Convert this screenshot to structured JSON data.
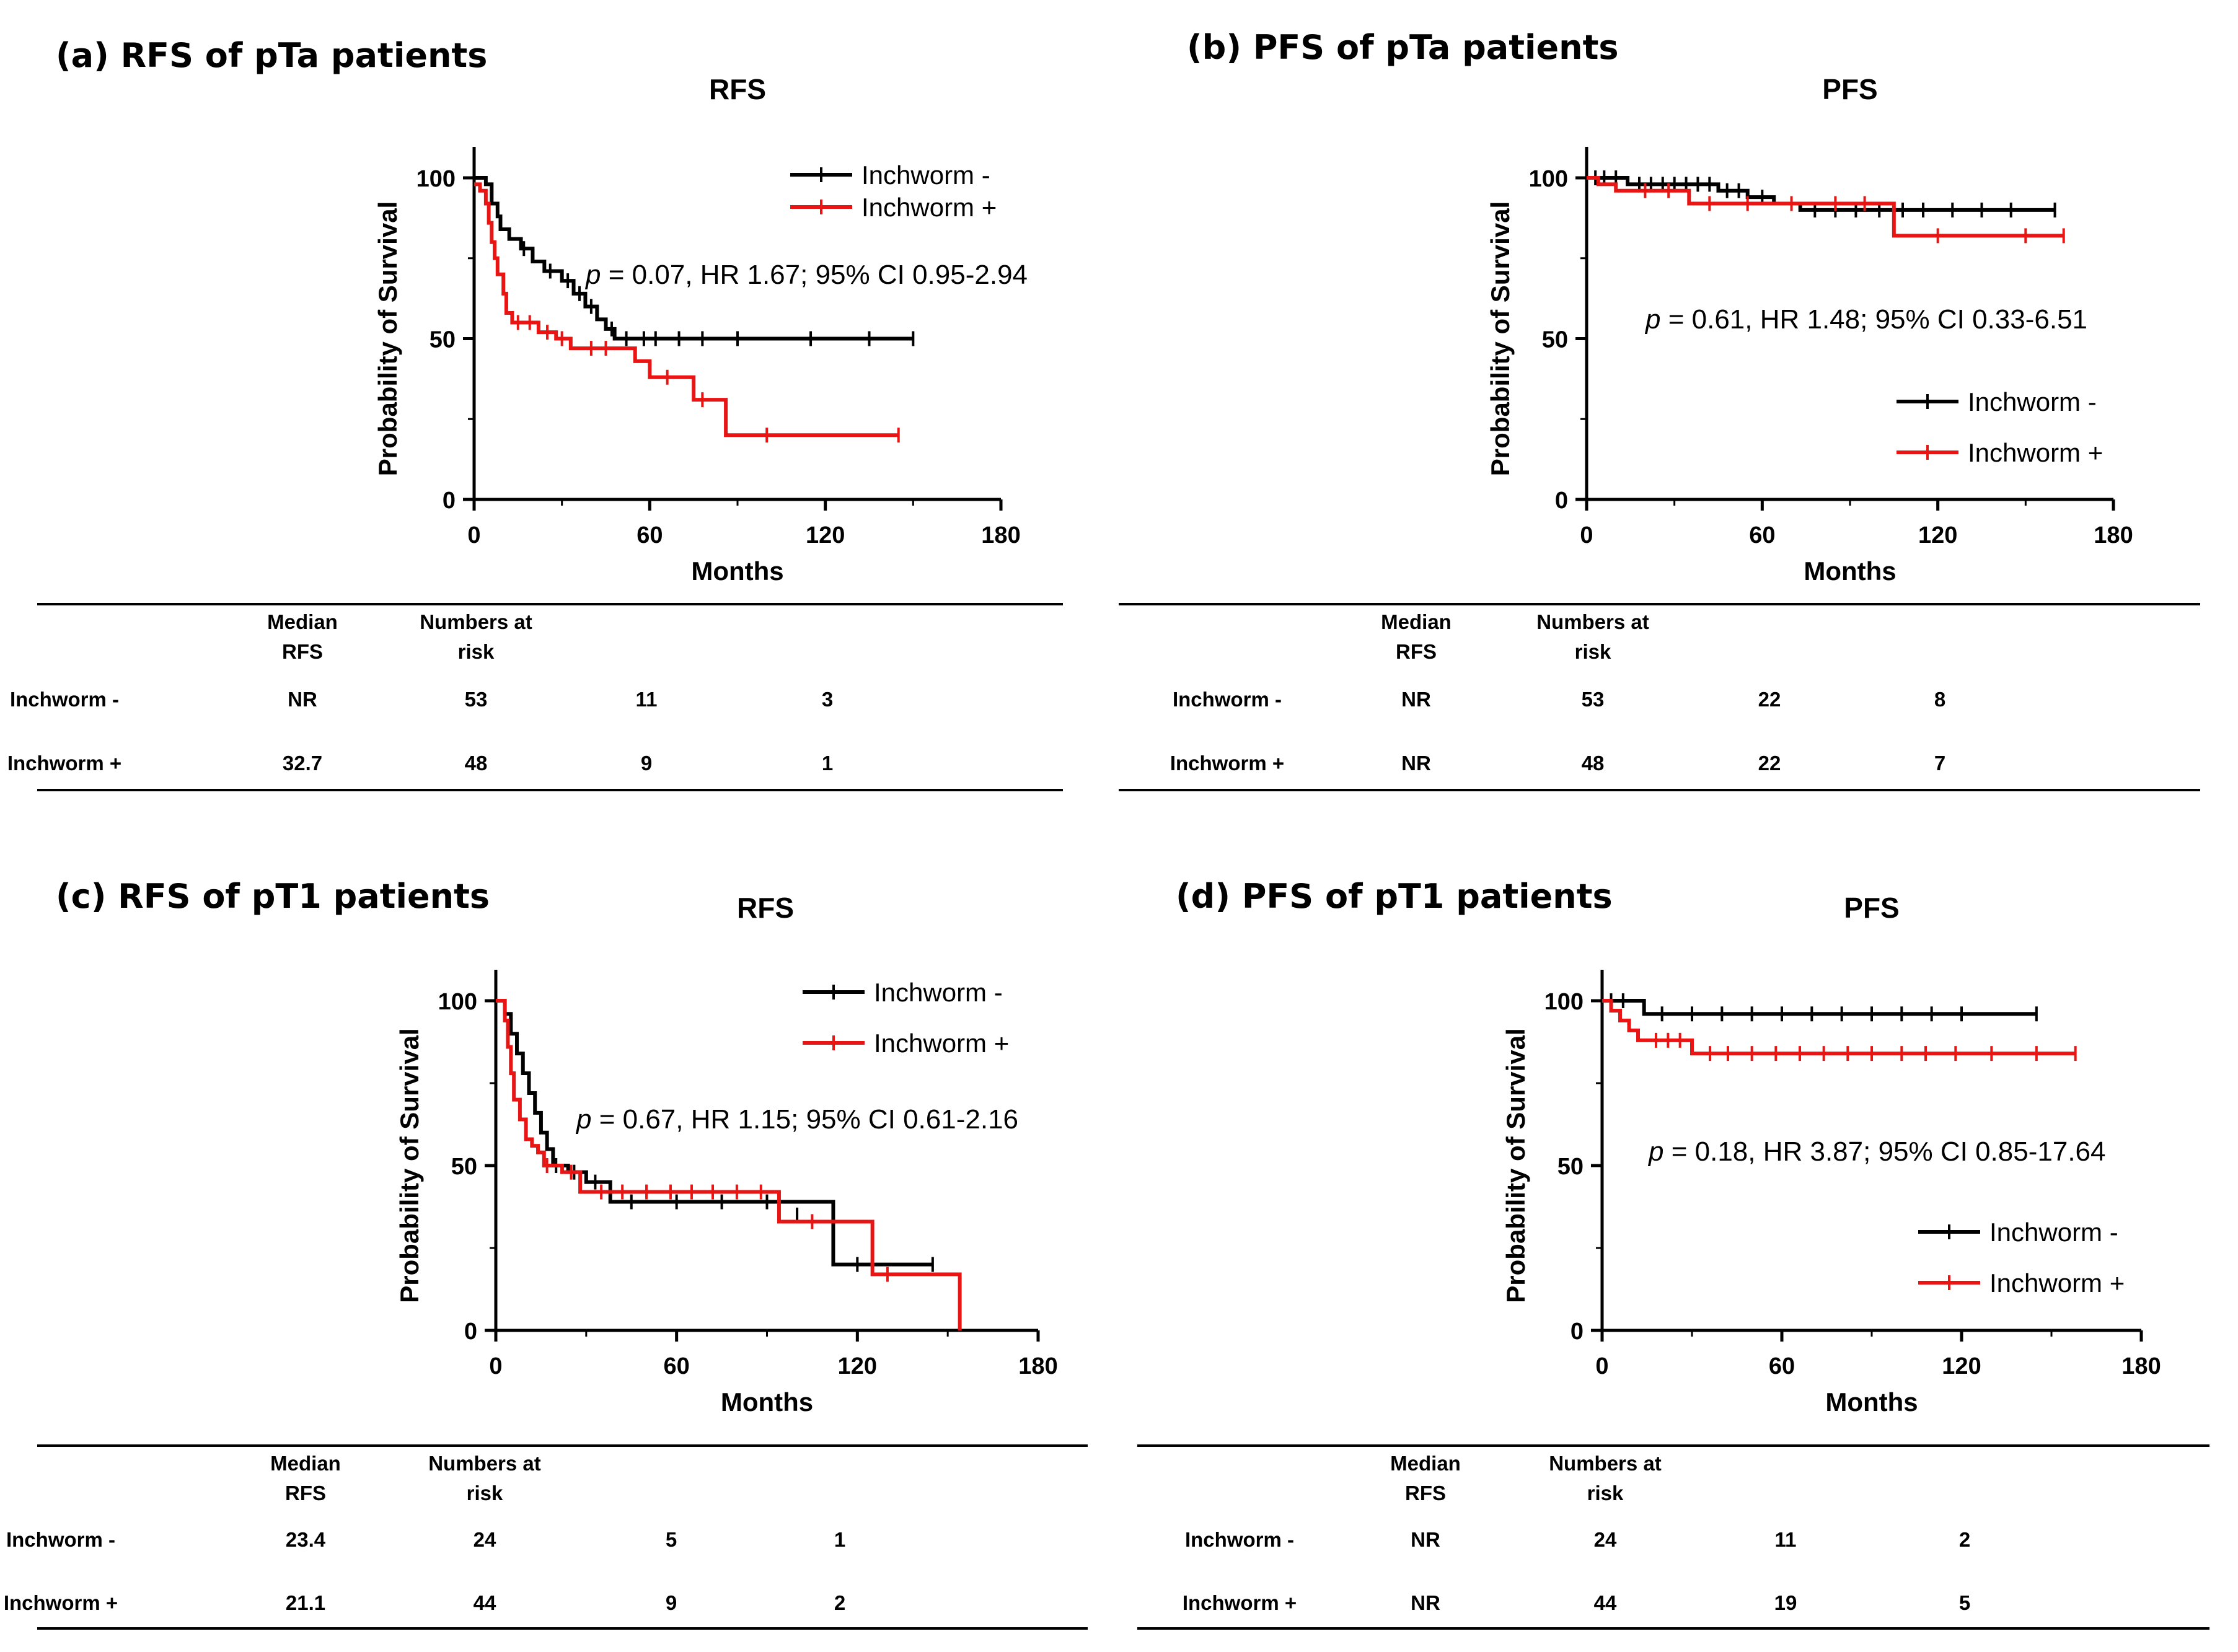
{
  "colors": {
    "series_neg": "#000000",
    "series_pos": "#e81515",
    "axis": "#000000",
    "table_rule": "#000000"
  },
  "chart_data": [
    {
      "type": "line",
      "panel_title": "(a) RFS of pTa patients",
      "title": "RFS",
      "xlabel": "Months",
      "ylabel": "Probability of Survival",
      "xlim": [
        0,
        180
      ],
      "ylim": [
        0,
        100
      ],
      "xticks": [
        "0",
        "60",
        "120",
        "180"
      ],
      "yticks": [
        "0",
        "50",
        "100"
      ],
      "legend_position": "top-right",
      "annotation": {
        "p": "p",
        "text": " = 0.07, HR 1.67; 95% CI 0.95-2.94"
      },
      "series": [
        {
          "name": "Inchworm -",
          "color": "#000000",
          "steps": [
            [
              0,
              100
            ],
            [
              4,
              98
            ],
            [
              6,
              92
            ],
            [
              8,
              88
            ],
            [
              9,
              84
            ],
            [
              12,
              81
            ],
            [
              16,
              78
            ],
            [
              20,
              74
            ],
            [
              24,
              71
            ],
            [
              30,
              68
            ],
            [
              34,
              64
            ],
            [
              38,
              60
            ],
            [
              42,
              56
            ],
            [
              45,
              53
            ],
            [
              48,
              50
            ],
            [
              150,
              50
            ]
          ],
          "censored": [
            [
              17,
              78
            ],
            [
              26,
              71
            ],
            [
              32,
              68
            ],
            [
              36,
              64
            ],
            [
              40,
              60
            ],
            [
              47,
              53
            ],
            [
              52,
              50
            ],
            [
              58,
              50
            ],
            [
              62,
              50
            ],
            [
              70,
              50
            ],
            [
              78,
              50
            ],
            [
              90,
              50
            ],
            [
              115,
              50
            ],
            [
              135,
              50
            ],
            [
              150,
              50
            ]
          ]
        },
        {
          "name": "Inchworm +",
          "color": "#e81515",
          "steps": [
            [
              0,
              98
            ],
            [
              2,
              96
            ],
            [
              4,
              92
            ],
            [
              5,
              86
            ],
            [
              6,
              80
            ],
            [
              7,
              75
            ],
            [
              8,
              70
            ],
            [
              10,
              64
            ],
            [
              11,
              58
            ],
            [
              13,
              55
            ],
            [
              22,
              52
            ],
            [
              28,
              50
            ],
            [
              33,
              47
            ],
            [
              55,
              43
            ],
            [
              60,
              38
            ],
            [
              75,
              31
            ],
            [
              86,
              20
            ],
            [
              145,
              20
            ]
          ],
          "censored": [
            [
              15,
              55
            ],
            [
              19,
              55
            ],
            [
              25,
              52
            ],
            [
              30,
              50
            ],
            [
              40,
              47
            ],
            [
              45,
              47
            ],
            [
              66,
              38
            ],
            [
              78,
              31
            ],
            [
              100,
              20
            ],
            [
              145,
              20
            ]
          ]
        }
      ],
      "risk_table": {
        "headers": [
          "Median\nRFS",
          "Numbers at\nrisk"
        ],
        "rows": [
          {
            "label": "Inchworm -",
            "median": "NR",
            "numbers": [
              "53",
              "11",
              "3"
            ]
          },
          {
            "label": "Inchworm +",
            "median": "32.7",
            "numbers": [
              "48",
              "9",
              "1"
            ]
          }
        ]
      }
    },
    {
      "type": "line",
      "panel_title": "(b) PFS of pTa patients",
      "title": "PFS",
      "xlabel": "Months",
      "ylabel": "Probability of Survival",
      "xlim": [
        0,
        180
      ],
      "ylim": [
        0,
        100
      ],
      "xticks": [
        "0",
        "60",
        "120",
        "180"
      ],
      "yticks": [
        "0",
        "50",
        "100"
      ],
      "legend_position": "right",
      "annotation": {
        "p": "p",
        "text": " = 0.61, HR 1.48; 95% CI 0.33-6.51"
      },
      "series": [
        {
          "name": "Inchworm -",
          "color": "#000000",
          "steps": [
            [
              0,
              100
            ],
            [
              14,
              98
            ],
            [
              45,
              96
            ],
            [
              55,
              94
            ],
            [
              64,
              92
            ],
            [
              73,
              90
            ],
            [
              160,
              90
            ]
          ],
          "censored": [
            [
              3,
              100
            ],
            [
              6,
              100
            ],
            [
              10,
              100
            ],
            [
              18,
              98
            ],
            [
              22,
              98
            ],
            [
              26,
              98
            ],
            [
              30,
              98
            ],
            [
              34,
              98
            ],
            [
              38,
              98
            ],
            [
              42,
              98
            ],
            [
              48,
              96
            ],
            [
              52,
              96
            ],
            [
              60,
              94
            ],
            [
              78,
              90
            ],
            [
              85,
              90
            ],
            [
              92,
              90
            ],
            [
              100,
              90
            ],
            [
              108,
              90
            ],
            [
              115,
              90
            ],
            [
              125,
              90
            ],
            [
              135,
              90
            ],
            [
              145,
              90
            ],
            [
              160,
              90
            ]
          ]
        },
        {
          "name": "Inchworm +",
          "color": "#e81515",
          "steps": [
            [
              0,
              100
            ],
            [
              4,
              98
            ],
            [
              10,
              96
            ],
            [
              35,
              92
            ],
            [
              105,
              82
            ],
            [
              163,
              82
            ]
          ],
          "censored": [
            [
              20,
              96
            ],
            [
              28,
              96
            ],
            [
              42,
              92
            ],
            [
              55,
              92
            ],
            [
              70,
              92
            ],
            [
              85,
              92
            ],
            [
              95,
              92
            ],
            [
              120,
              82
            ],
            [
              150,
              82
            ],
            [
              163,
              82
            ]
          ]
        }
      ],
      "risk_table": {
        "headers": [
          "Median\nRFS",
          "Numbers at\nrisk"
        ],
        "rows": [
          {
            "label": "Inchworm -",
            "median": "NR",
            "numbers": [
              "53",
              "22",
              "8"
            ]
          },
          {
            "label": "Inchworm +",
            "median": "NR",
            "numbers": [
              "48",
              "22",
              "7"
            ]
          }
        ]
      }
    },
    {
      "type": "line",
      "panel_title": "(c) RFS of pT1 patients",
      "title": "RFS",
      "xlabel": "Months",
      "ylabel": "Probability of Survival",
      "xlim": [
        0,
        180
      ],
      "ylim": [
        0,
        100
      ],
      "xticks": [
        "0",
        "60",
        "120",
        "180"
      ],
      "yticks": [
        "0",
        "50",
        "100"
      ],
      "legend_position": "top-right",
      "annotation": {
        "p": "p",
        "text": " = 0.67, HR 1.15; 95% CI 0.61-2.16"
      },
      "series": [
        {
          "name": "Inchworm -",
          "color": "#000000",
          "steps": [
            [
              0,
              100
            ],
            [
              3,
              96
            ],
            [
              5,
              90
            ],
            [
              7,
              84
            ],
            [
              9,
              78
            ],
            [
              11,
              72
            ],
            [
              13,
              66
            ],
            [
              15,
              60
            ],
            [
              17,
              55
            ],
            [
              19,
              50
            ],
            [
              24,
              48
            ],
            [
              30,
              45
            ],
            [
              38,
              39
            ],
            [
              112,
              20
            ],
            [
              145,
              20
            ]
          ],
          "censored": [
            [
              20,
              50
            ],
            [
              26,
              48
            ],
            [
              33,
              45
            ],
            [
              45,
              39
            ],
            [
              60,
              39
            ],
            [
              75,
              39
            ],
            [
              90,
              39
            ],
            [
              100,
              35
            ],
            [
              120,
              20
            ],
            [
              145,
              20
            ]
          ]
        },
        {
          "name": "Inchworm +",
          "color": "#e81515",
          "steps": [
            [
              0,
              100
            ],
            [
              3,
              94
            ],
            [
              4,
              86
            ],
            [
              5,
              78
            ],
            [
              6,
              70
            ],
            [
              8,
              64
            ],
            [
              10,
              58
            ],
            [
              12,
              56
            ],
            [
              14,
              54
            ],
            [
              16,
              50
            ],
            [
              22,
              48
            ],
            [
              28,
              42
            ],
            [
              94,
              33
            ],
            [
              125,
              17
            ],
            [
              154,
              0
            ]
          ],
          "censored": [
            [
              17,
              50
            ],
            [
              25,
              48
            ],
            [
              35,
              42
            ],
            [
              42,
              42
            ],
            [
              50,
              42
            ],
            [
              58,
              42
            ],
            [
              65,
              42
            ],
            [
              72,
              42
            ],
            [
              80,
              42
            ],
            [
              88,
              42
            ],
            [
              105,
              33
            ],
            [
              130,
              17
            ]
          ]
        }
      ],
      "risk_table": {
        "headers": [
          "Median\nRFS",
          "Numbers at\nrisk"
        ],
        "rows": [
          {
            "label": "Inchworm -",
            "median": "23.4",
            "numbers": [
              "24",
              "5",
              "1"
            ]
          },
          {
            "label": "Inchworm +",
            "median": "21.1",
            "numbers": [
              "44",
              "9",
              "2"
            ]
          }
        ]
      }
    },
    {
      "type": "line",
      "panel_title": "(d) PFS of pT1 patients",
      "title": "PFS",
      "xlabel": "Months",
      "ylabel": "Probability of Survival",
      "xlim": [
        0,
        180
      ],
      "ylim": [
        0,
        100
      ],
      "xticks": [
        "0",
        "60",
        "120",
        "180"
      ],
      "yticks": [
        "0",
        "50",
        "100"
      ],
      "legend_position": "right",
      "annotation": {
        "p": "p",
        "text": " = 0.18, HR 3.87; 95% CI 0.85-17.64"
      },
      "series": [
        {
          "name": "Inchworm -",
          "color": "#000000",
          "steps": [
            [
              0,
              100
            ],
            [
              14,
              96
            ],
            [
              145,
              96
            ]
          ],
          "censored": [
            [
              3,
              100
            ],
            [
              7,
              100
            ],
            [
              20,
              96
            ],
            [
              30,
              96
            ],
            [
              40,
              96
            ],
            [
              50,
              96
            ],
            [
              60,
              96
            ],
            [
              70,
              96
            ],
            [
              80,
              96
            ],
            [
              90,
              96
            ],
            [
              100,
              96
            ],
            [
              110,
              96
            ],
            [
              120,
              96
            ],
            [
              145,
              96
            ]
          ]
        },
        {
          "name": "Inchworm +",
          "color": "#e81515",
          "steps": [
            [
              0,
              100
            ],
            [
              3,
              97
            ],
            [
              6,
              94
            ],
            [
              9,
              91
            ],
            [
              12,
              88
            ],
            [
              30,
              84
            ],
            [
              158,
              84
            ]
          ],
          "censored": [
            [
              18,
              88
            ],
            [
              22,
              88
            ],
            [
              26,
              88
            ],
            [
              36,
              84
            ],
            [
              42,
              84
            ],
            [
              50,
              84
            ],
            [
              58,
              84
            ],
            [
              66,
              84
            ],
            [
              74,
              84
            ],
            [
              82,
              84
            ],
            [
              90,
              84
            ],
            [
              100,
              84
            ],
            [
              108,
              84
            ],
            [
              118,
              84
            ],
            [
              130,
              84
            ],
            [
              145,
              84
            ],
            [
              158,
              84
            ]
          ]
        }
      ],
      "risk_table": {
        "headers": [
          "Median\nRFS",
          "Numbers at\nrisk"
        ],
        "rows": [
          {
            "label": "Inchworm -",
            "median": "NR",
            "numbers": [
              "24",
              "11",
              "2"
            ]
          },
          {
            "label": "Inchworm +",
            "median": "NR",
            "numbers": [
              "44",
              "19",
              "5"
            ]
          }
        ]
      }
    }
  ]
}
